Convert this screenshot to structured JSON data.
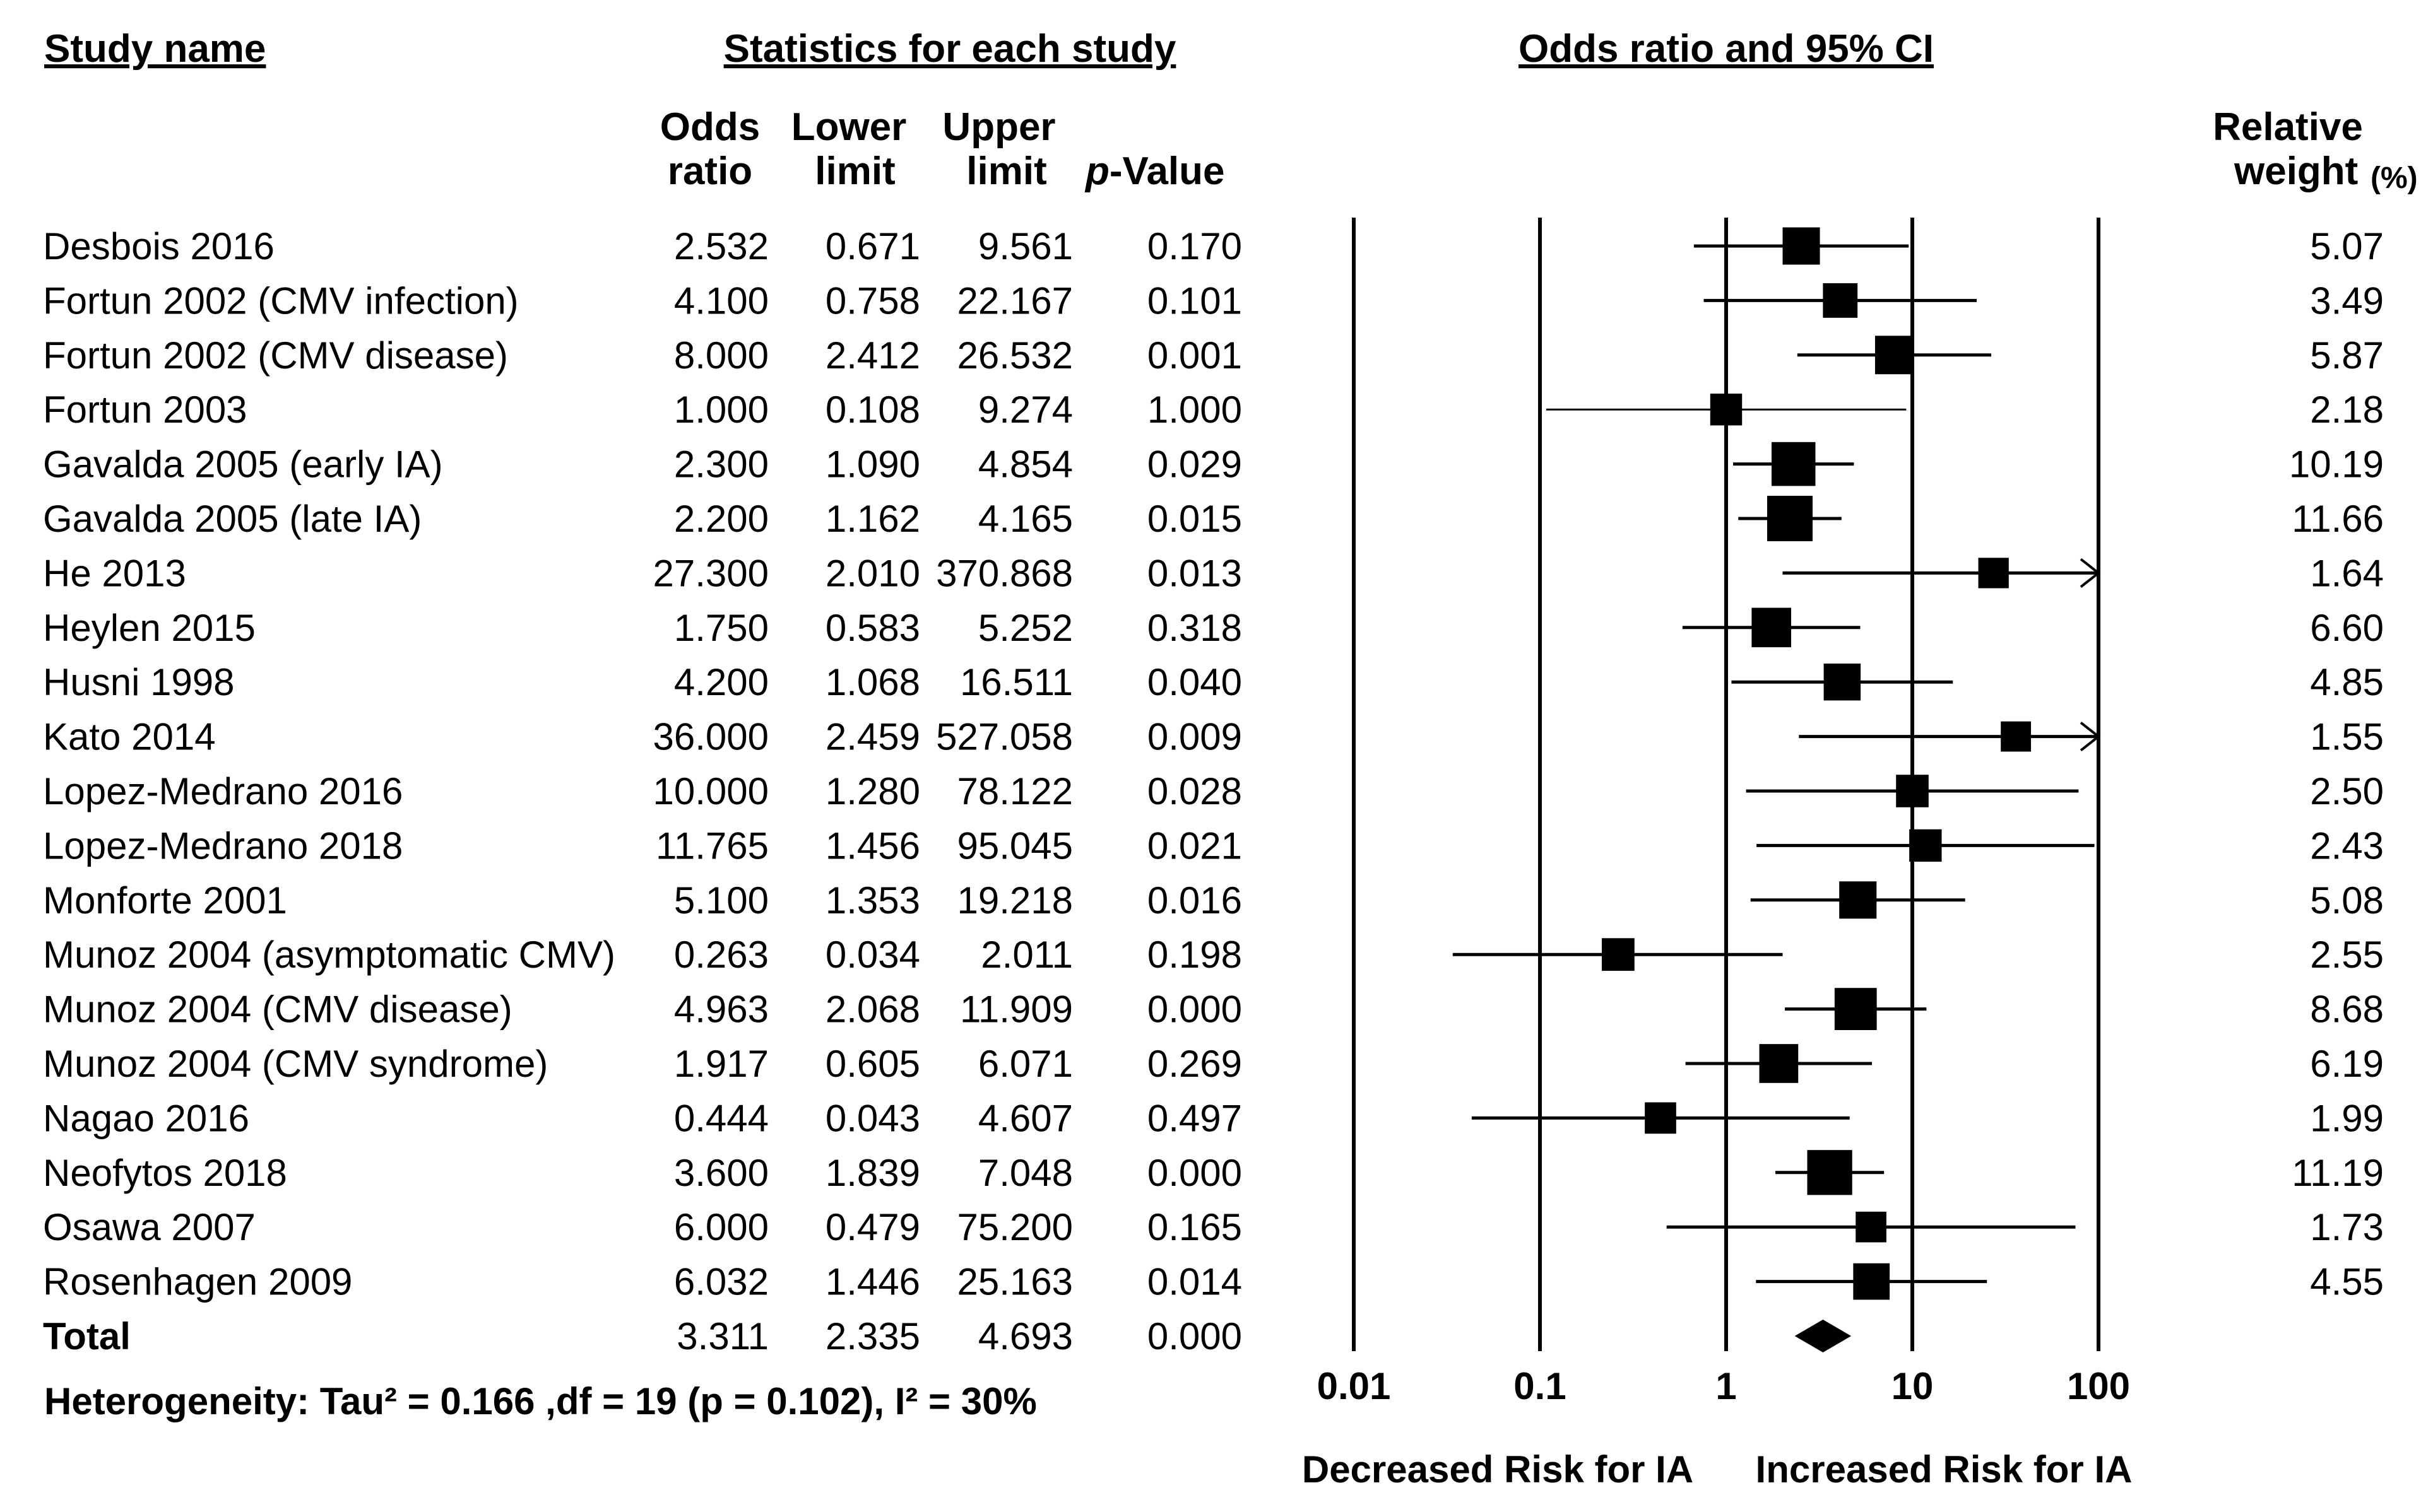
{
  "headers": {
    "study_name": "Study name",
    "statistics": "Statistics for each study",
    "forest_title": "Odds ratio and 95% CI",
    "col_or_line1": "Odds",
    "col_or_line2": "ratio",
    "col_lower_line1": "Lower",
    "col_lower_line2": "limit",
    "col_upper_line1": "Upper",
    "col_upper_line2": "limit",
    "col_p_italic": "p",
    "col_p_rest": "-Value",
    "weight_line1": "Relative",
    "weight_line2": "weight",
    "weight_unit": "(%)"
  },
  "chart_data": {
    "type": "forest",
    "scale": "log",
    "xlim": [
      0.01,
      100
    ],
    "xticks": [
      0.01,
      0.1,
      1,
      10,
      100
    ],
    "xtick_labels": [
      "0.01",
      "0.1",
      "1",
      "10",
      "100"
    ],
    "left_label": "Decreased Risk for IA",
    "right_label": "Increased Risk for IA",
    "heterogeneity": "Heterogeneity: Tau² = 0.166 ,df = 19 (p = 0.102), I² = 30%",
    "studies": [
      {
        "name": "Desbois 2016",
        "or": "2.532",
        "lower": "0.671",
        "upper": "9.561",
        "p": "0.170",
        "weight": "5.07"
      },
      {
        "name": "Fortun 2002 (CMV infection)",
        "or": "4.100",
        "lower": "0.758",
        "upper": "22.167",
        "p": "0.101",
        "weight": "3.49"
      },
      {
        "name": "Fortun 2002 (CMV disease)",
        "or": "8.000",
        "lower": "2.412",
        "upper": "26.532",
        "p": "0.001",
        "weight": "5.87"
      },
      {
        "name": "Fortun 2003",
        "or": "1.000",
        "lower": "0.108",
        "upper": "9.274",
        "p": "1.000",
        "weight": "2.18"
      },
      {
        "name": "Gavalda 2005 (early IA)",
        "or": "2.300",
        "lower": "1.090",
        "upper": "4.854",
        "p": "0.029",
        "weight": "10.19"
      },
      {
        "name": "Gavalda 2005 (late IA)",
        "or": "2.200",
        "lower": "1.162",
        "upper": "4.165",
        "p": "0.015",
        "weight": "11.66"
      },
      {
        "name": "He 2013",
        "or": "27.300",
        "lower": "2.010",
        "upper": "370.868",
        "p": "0.013",
        "weight": "1.64"
      },
      {
        "name": "Heylen 2015",
        "or": "1.750",
        "lower": "0.583",
        "upper": "5.252",
        "p": "0.318",
        "weight": "6.60"
      },
      {
        "name": "Husni 1998",
        "or": "4.200",
        "lower": "1.068",
        "upper": "16.511",
        "p": "0.040",
        "weight": "4.85"
      },
      {
        "name": "Kato 2014",
        "or": "36.000",
        "lower": "2.459",
        "upper": "527.058",
        "p": "0.009",
        "weight": "1.55"
      },
      {
        "name": "Lopez-Medrano 2016",
        "or": "10.000",
        "lower": "1.280",
        "upper": "78.122",
        "p": "0.028",
        "weight": "2.50"
      },
      {
        "name": "Lopez-Medrano 2018",
        "or": "11.765",
        "lower": "1.456",
        "upper": "95.045",
        "p": "0.021",
        "weight": "2.43"
      },
      {
        "name": "Monforte 2001",
        "or": "5.100",
        "lower": "1.353",
        "upper": "19.218",
        "p": "0.016",
        "weight": "5.08"
      },
      {
        "name": "Munoz 2004 (asymptomatic CMV)",
        "or": "0.263",
        "lower": "0.034",
        "upper": "2.011",
        "p": "0.198",
        "weight": "2.55"
      },
      {
        "name": "Munoz 2004 (CMV disease)",
        "or": "4.963",
        "lower": "2.068",
        "upper": "11.909",
        "p": "0.000",
        "weight": "8.68"
      },
      {
        "name": "Munoz 2004 (CMV syndrome)",
        "or": "1.917",
        "lower": "0.605",
        "upper": "6.071",
        "p": "0.269",
        "weight": "6.19"
      },
      {
        "name": "Nagao 2016",
        "or": "0.444",
        "lower": "0.043",
        "upper": "4.607",
        "p": "0.497",
        "weight": "1.99"
      },
      {
        "name": "Neofytos 2018",
        "or": "3.600",
        "lower": "1.839",
        "upper": "7.048",
        "p": "0.000",
        "weight": "11.19"
      },
      {
        "name": "Osawa 2007",
        "or": "6.000",
        "lower": "0.479",
        "upper": "75.200",
        "p": "0.165",
        "weight": "1.73"
      },
      {
        "name": "Rosenhagen 2009",
        "or": "6.032",
        "lower": "1.446",
        "upper": "25.163",
        "p": "0.014",
        "weight": "4.55"
      }
    ],
    "total": {
      "name": "Total",
      "or": "3.311",
      "lower": "2.335",
      "upper": "4.693",
      "p": "0.000"
    }
  }
}
